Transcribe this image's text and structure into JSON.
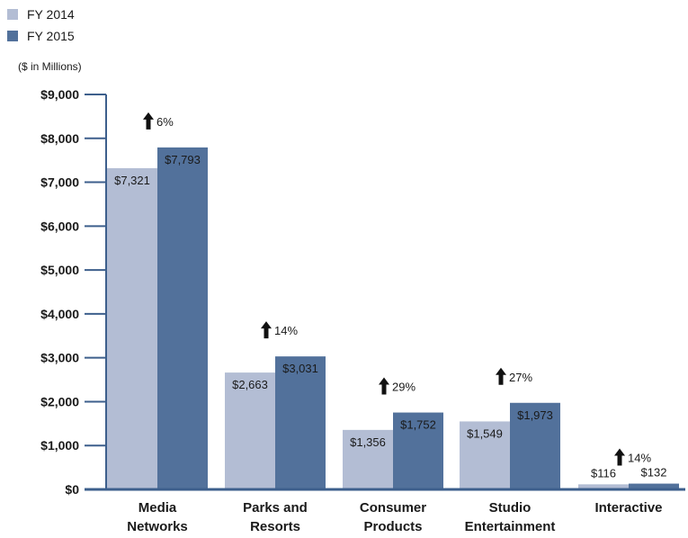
{
  "chart_data": {
    "type": "bar",
    "unit_label": "($ in Millions)",
    "categories": [
      [
        "Media",
        "Networks"
      ],
      [
        "Parks and",
        "Resorts"
      ],
      [
        "Consumer",
        "Products"
      ],
      [
        "Studio",
        "Entertainment"
      ],
      [
        "Interactive"
      ]
    ],
    "series": [
      {
        "name": "FY 2014",
        "color": "#b3bdd4",
        "values": [
          7321,
          2663,
          1356,
          1549,
          116
        ],
        "labels": [
          "$7,321",
          "$2,663",
          "$1,356",
          "$1,549",
          "$116"
        ]
      },
      {
        "name": "FY 2015",
        "color": "#52719b",
        "values": [
          7793,
          3031,
          1752,
          1973,
          132
        ],
        "labels": [
          "$7,793",
          "$3,031",
          "$1,752",
          "$1,973",
          "$132"
        ]
      }
    ],
    "changes": [
      "6%",
      "14%",
      "29%",
      "27%",
      "14%"
    ],
    "y_ticks": [
      0,
      1000,
      2000,
      3000,
      4000,
      5000,
      6000,
      7000,
      8000,
      9000
    ],
    "y_tick_labels": [
      "$0",
      "$1,000",
      "$2,000",
      "$3,000",
      "$4,000",
      "$5,000",
      "$6,000",
      "$7,000",
      "$8,000",
      "$9,000"
    ],
    "ylim": [
      0,
      9000
    ],
    "axis_color": "#3d5f8c",
    "legend_position": "top-left",
    "grid": false
  }
}
